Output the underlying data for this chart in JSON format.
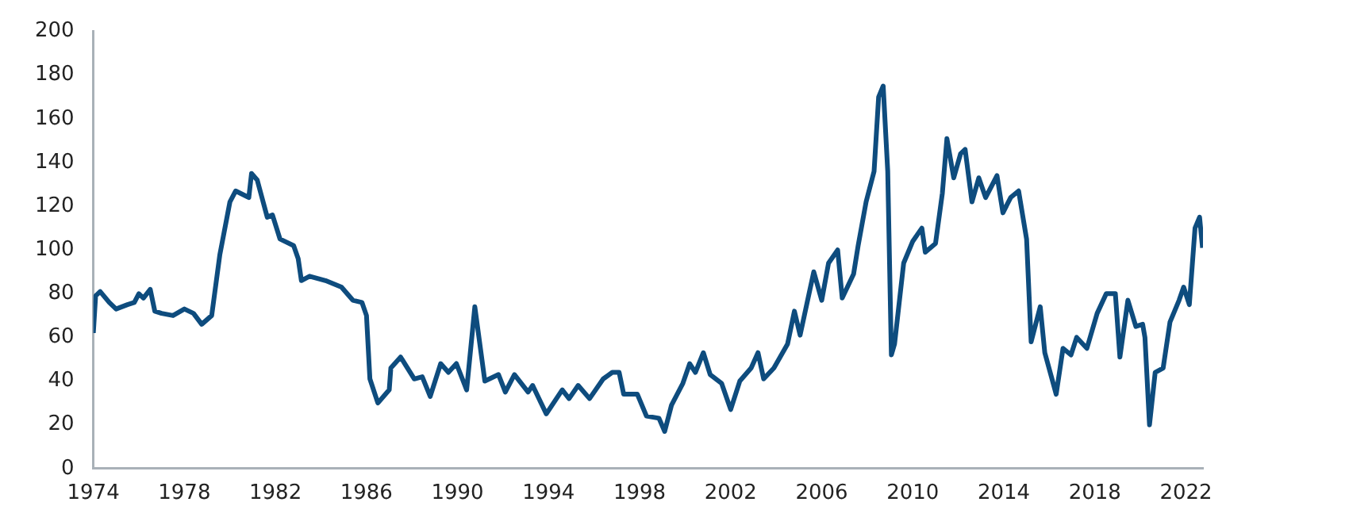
{
  "chart_data": {
    "type": "line",
    "x": [
      1974.0,
      1974.1,
      1974.3,
      1974.7,
      1975.0,
      1975.5,
      1975.8,
      1976.0,
      1976.2,
      1976.5,
      1976.7,
      1977.0,
      1977.5,
      1978.0,
      1978.4,
      1978.76,
      1979.2,
      1979.56,
      1980.0,
      1980.25,
      1980.83,
      1980.95,
      1981.2,
      1981.64,
      1981.87,
      1982.2,
      1982.8,
      1983.0,
      1983.14,
      1983.5,
      1984.2,
      1984.9,
      1985.4,
      1985.8,
      1986.0,
      1986.15,
      1986.5,
      1987.0,
      1987.07,
      1987.5,
      1988.1,
      1988.45,
      1988.8,
      1989.26,
      1989.6,
      1989.95,
      1990.4,
      1990.76,
      1991.2,
      1991.8,
      1992.1,
      1992.5,
      1993.1,
      1993.3,
      1993.9,
      1994.6,
      1994.9,
      1995.3,
      1995.8,
      1996.4,
      1996.8,
      1997.1,
      1997.3,
      1997.9,
      1998.3,
      1998.85,
      1999.1,
      1999.4,
      1999.9,
      2000.2,
      2000.45,
      2000.8,
      2001.1,
      2001.6,
      2002.0,
      2002.4,
      2002.9,
      2003.2,
      2003.45,
      2003.9,
      2004.5,
      2004.8,
      2005.05,
      2005.65,
      2006.0,
      2006.3,
      2006.7,
      2006.9,
      2007.4,
      2007.6,
      2007.95,
      2008.3,
      2008.5,
      2008.7,
      2008.9,
      2009.06,
      2009.2,
      2009.6,
      2010.0,
      2010.4,
      2010.55,
      2011.0,
      2011.3,
      2011.5,
      2011.8,
      2012.1,
      2012.3,
      2012.6,
      2012.9,
      2013.2,
      2013.7,
      2013.96,
      2014.3,
      2014.65,
      2015.0,
      2015.2,
      2015.6,
      2015.8,
      2016.3,
      2016.6,
      2016.95,
      2017.2,
      2017.65,
      2018.1,
      2018.5,
      2018.9,
      2019.1,
      2019.45,
      2019.8,
      2020.1,
      2020.2,
      2020.4,
      2020.65,
      2021.0,
      2021.3,
      2021.7,
      2021.9,
      2022.15,
      2022.4,
      2022.6,
      2022.73
    ],
    "series": [
      {
        "color": "#0e4c7e",
        "values": [
          62,
          79,
          81,
          76,
          73,
          75,
          76,
          80,
          78,
          82,
          72,
          71,
          70,
          73,
          71,
          66,
          70,
          98,
          122,
          127,
          124,
          135,
          132,
          115,
          116,
          105,
          102,
          96,
          86,
          88,
          86,
          83,
          77,
          76,
          70,
          41,
          30,
          36,
          46,
          51,
          41,
          42,
          33,
          48,
          44,
          48,
          36,
          74,
          40,
          43,
          35,
          43,
          35,
          38,
          25,
          36,
          32,
          38,
          32,
          41,
          44,
          44,
          34,
          34,
          24,
          23,
          17,
          29,
          39,
          48,
          44,
          53,
          43,
          39,
          27,
          40,
          46,
          53,
          41,
          46,
          57,
          72,
          61,
          90,
          77,
          94,
          100,
          78,
          89,
          102,
          122,
          136,
          170,
          175,
          136,
          52,
          57,
          94,
          104,
          110,
          99,
          103,
          126,
          151,
          133,
          144,
          146,
          122,
          133,
          124,
          134,
          117,
          124,
          127,
          105,
          58,
          74,
          53,
          34,
          55,
          52,
          60,
          55,
          71,
          80,
          80,
          51,
          77,
          65,
          66,
          60,
          20,
          44,
          46,
          67,
          77,
          83,
          75,
          110,
          115,
          101
        ]
      }
    ],
    "xlim": [
      1974,
      2022.75
    ],
    "xticks": [
      1974,
      1978,
      1982,
      1986,
      1990,
      1994,
      1998,
      2002,
      2006,
      2010,
      2014,
      2018,
      2022
    ],
    "ylim": [
      0,
      200
    ],
    "yticks": [
      0,
      20,
      40,
      60,
      80,
      100,
      120,
      140,
      160,
      180,
      200
    ]
  }
}
